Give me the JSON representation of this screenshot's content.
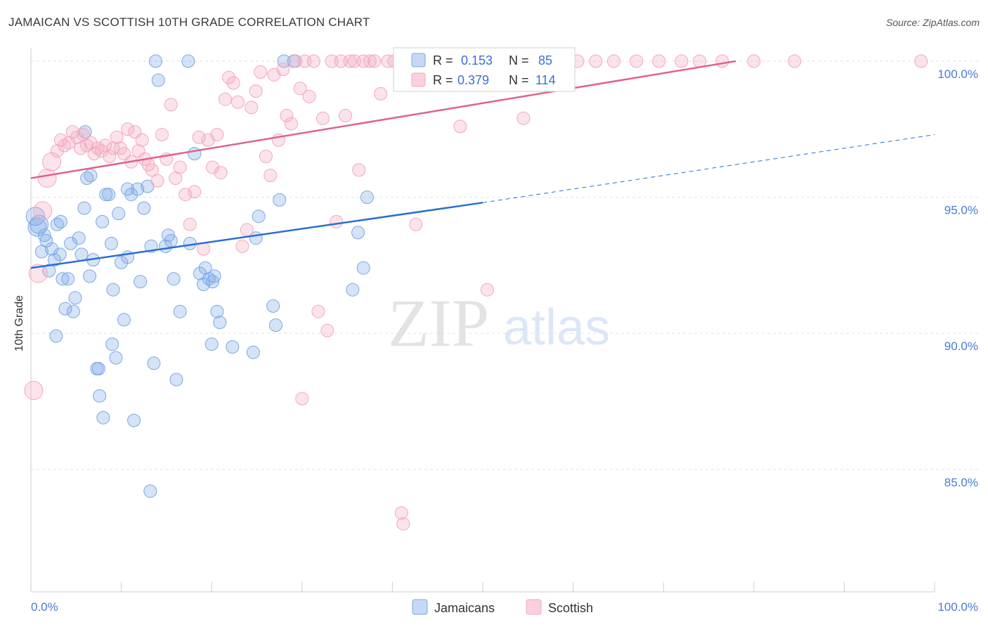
{
  "title": "JAMAICAN VS SCOTTISH 10TH GRADE CORRELATION CHART",
  "source": "Source: ZipAtlas.com",
  "watermark": {
    "zip": "ZIP",
    "atlas": "atlas"
  },
  "colors": {
    "blue": "#7ba7e6",
    "blue_line": "#2a6fd0",
    "pink": "#f4a7bf",
    "pink_line": "#e0628e",
    "tick": "#4a7bd0"
  },
  "chart_data": {
    "type": "scatter",
    "title": "JAMAICAN VS SCOTTISH 10TH GRADE CORRELATION CHART",
    "xlabel": "",
    "ylabel": "10th Grade",
    "xlim": [
      0,
      100
    ],
    "ylim": [
      80.5,
      100.8
    ],
    "x_tick_labels": [
      "0.0%",
      "100.0%"
    ],
    "y_ticks": [
      85,
      90,
      95,
      100
    ],
    "y_tick_labels": [
      "85.0%",
      "90.0%",
      "95.0%",
      "100.0%"
    ],
    "grid": "horizontal dashed",
    "legend_position": "top-center",
    "bottom_legend": [
      "Jamaicans",
      "Scottish"
    ],
    "stats": [
      {
        "r_label": "R =",
        "r": "0.153",
        "n_label": "N =",
        "n": "85"
      },
      {
        "r_label": "R =",
        "r": "0.379",
        "n_label": "N =",
        "n": "114"
      }
    ],
    "series": [
      {
        "name": "Jamaicans",
        "color": "#7ba7e6",
        "trend": {
          "x": [
            0,
            50
          ],
          "y": [
            92.4,
            94.8
          ],
          "dashed_to": [
            100,
            97.3
          ]
        },
        "points": [
          [
            0.5,
            94.3
          ],
          [
            0.7,
            93.9
          ],
          [
            0.9,
            94.0
          ],
          [
            1.2,
            93.0
          ],
          [
            1.5,
            93.6
          ],
          [
            1.7,
            93.4
          ],
          [
            2.0,
            92.3
          ],
          [
            2.3,
            93.1
          ],
          [
            2.6,
            92.7
          ],
          [
            2.9,
            94.0
          ],
          [
            3.2,
            92.9
          ],
          [
            3.5,
            92.0
          ],
          [
            3.8,
            90.9
          ],
          [
            4.1,
            92.0
          ],
          [
            4.4,
            93.3
          ],
          [
            4.7,
            90.8
          ],
          [
            4.9,
            91.3
          ],
          [
            5.3,
            93.5
          ],
          [
            5.6,
            92.9
          ],
          [
            5.9,
            94.6
          ],
          [
            6.2,
            95.7
          ],
          [
            6.5,
            92.1
          ],
          [
            6.9,
            92.7
          ],
          [
            7.3,
            88.7
          ],
          [
            7.6,
            87.7
          ],
          [
            7.9,
            94.1
          ],
          [
            8.3,
            95.1
          ],
          [
            8.6,
            95.1
          ],
          [
            8.9,
            93.3
          ],
          [
            9.1,
            91.6
          ],
          [
            9.4,
            89.1
          ],
          [
            9.7,
            94.4
          ],
          [
            10.0,
            92.6
          ],
          [
            10.3,
            90.5
          ],
          [
            10.7,
            92.8
          ],
          [
            11.1,
            95.1
          ],
          [
            11.4,
            86.8
          ],
          [
            11.8,
            95.3
          ],
          [
            12.1,
            91.9
          ],
          [
            12.5,
            94.6
          ],
          [
            12.9,
            95.4
          ],
          [
            13.3,
            93.2
          ],
          [
            13.6,
            88.9
          ],
          [
            13.8,
            100.0
          ],
          [
            13.2,
            84.2
          ],
          [
            14.1,
            99.3
          ],
          [
            14.9,
            93.2
          ],
          [
            15.2,
            93.6
          ],
          [
            15.5,
            93.4
          ],
          [
            15.8,
            92.0
          ],
          [
            16.1,
            88.3
          ],
          [
            16.5,
            90.8
          ],
          [
            17.4,
            100.0
          ],
          [
            17.6,
            93.3
          ],
          [
            18.1,
            96.6
          ],
          [
            18.7,
            92.2
          ],
          [
            19.1,
            91.8
          ],
          [
            19.3,
            92.4
          ],
          [
            19.7,
            92.0
          ],
          [
            20.1,
            91.9
          ],
          [
            20.3,
            92.1
          ],
          [
            20.6,
            90.8
          ],
          [
            20.9,
            90.4
          ],
          [
            20.0,
            89.6
          ],
          [
            22.3,
            89.5
          ],
          [
            24.6,
            89.3
          ],
          [
            24.9,
            93.5
          ],
          [
            25.2,
            94.3
          ],
          [
            27.1,
            90.3
          ],
          [
            26.8,
            91.0
          ],
          [
            27.5,
            94.9
          ],
          [
            28.0,
            100.0
          ],
          [
            29.1,
            100.0
          ],
          [
            35.6,
            91.6
          ],
          [
            36.2,
            93.7
          ],
          [
            36.8,
            92.4
          ],
          [
            37.2,
            95.0
          ],
          [
            8.0,
            86.9
          ],
          [
            7.5,
            88.7
          ],
          [
            9.0,
            89.6
          ],
          [
            2.8,
            89.9
          ],
          [
            6.0,
            97.4
          ],
          [
            10.7,
            95.3
          ],
          [
            6.6,
            95.8
          ],
          [
            3.3,
            94.1
          ]
        ]
      },
      {
        "name": "Scottish",
        "color": "#f4a7bf",
        "trend": {
          "x": [
            0,
            78
          ],
          "y": [
            95.7,
            100.0
          ]
        },
        "points": [
          [
            0.3,
            87.9
          ],
          [
            0.8,
            92.2
          ],
          [
            1.3,
            94.5
          ],
          [
            1.8,
            95.7
          ],
          [
            2.3,
            96.3
          ],
          [
            2.9,
            96.7
          ],
          [
            3.3,
            97.1
          ],
          [
            3.7,
            96.9
          ],
          [
            4.2,
            97.0
          ],
          [
            4.6,
            97.4
          ],
          [
            5.1,
            97.2
          ],
          [
            5.5,
            96.8
          ],
          [
            5.8,
            97.3
          ],
          [
            6.2,
            96.9
          ],
          [
            6.6,
            97.0
          ],
          [
            7.0,
            96.6
          ],
          [
            7.4,
            96.8
          ],
          [
            7.8,
            96.7
          ],
          [
            8.2,
            96.9
          ],
          [
            8.7,
            96.5
          ],
          [
            9.1,
            96.8
          ],
          [
            9.5,
            97.2
          ],
          [
            9.9,
            96.8
          ],
          [
            10.3,
            96.6
          ],
          [
            10.7,
            97.5
          ],
          [
            11.1,
            96.3
          ],
          [
            11.5,
            97.4
          ],
          [
            11.9,
            96.7
          ],
          [
            12.3,
            97.1
          ],
          [
            12.6,
            96.4
          ],
          [
            13.0,
            96.2
          ],
          [
            13.4,
            96.0
          ],
          [
            14.0,
            95.6
          ],
          [
            14.5,
            97.3
          ],
          [
            15.0,
            96.4
          ],
          [
            15.5,
            98.4
          ],
          [
            16.0,
            95.7
          ],
          [
            16.5,
            96.1
          ],
          [
            17.1,
            95.1
          ],
          [
            17.6,
            94.0
          ],
          [
            18.1,
            95.2
          ],
          [
            18.6,
            97.2
          ],
          [
            19.1,
            93.1
          ],
          [
            19.6,
            97.1
          ],
          [
            20.1,
            96.1
          ],
          [
            20.6,
            97.3
          ],
          [
            21.0,
            95.9
          ],
          [
            21.5,
            98.6
          ],
          [
            21.9,
            99.4
          ],
          [
            22.4,
            99.2
          ],
          [
            22.9,
            98.5
          ],
          [
            23.4,
            93.2
          ],
          [
            23.9,
            93.8
          ],
          [
            24.4,
            98.3
          ],
          [
            24.9,
            98.9
          ],
          [
            25.4,
            99.6
          ],
          [
            26.0,
            96.5
          ],
          [
            26.5,
            95.8
          ],
          [
            26.9,
            99.5
          ],
          [
            27.4,
            97.1
          ],
          [
            27.9,
            99.7
          ],
          [
            28.3,
            98.0
          ],
          [
            28.8,
            97.7
          ],
          [
            29.3,
            100.0
          ],
          [
            29.8,
            99.0
          ],
          [
            30.3,
            100.0
          ],
          [
            30.8,
            98.7
          ],
          [
            31.3,
            100.0
          ],
          [
            31.8,
            90.8
          ],
          [
            32.3,
            97.9
          ],
          [
            32.8,
            90.1
          ],
          [
            33.3,
            100.0
          ],
          [
            33.8,
            94.1
          ],
          [
            34.3,
            100.0
          ],
          [
            34.8,
            98.0
          ],
          [
            35.3,
            100.0
          ],
          [
            35.8,
            100.0
          ],
          [
            36.3,
            96.0
          ],
          [
            36.8,
            100.0
          ],
          [
            37.5,
            100.0
          ],
          [
            38.0,
            100.0
          ],
          [
            38.7,
            98.8
          ],
          [
            39.5,
            100.0
          ],
          [
            40.2,
            100.0
          ],
          [
            41.0,
            100.0
          ],
          [
            41.8,
            100.0
          ],
          [
            42.6,
            94.0
          ],
          [
            43.5,
            100.0
          ],
          [
            44.5,
            100.0
          ],
          [
            45.5,
            100.0
          ],
          [
            46.5,
            100.0
          ],
          [
            47.5,
            97.6
          ],
          [
            48.5,
            100.0
          ],
          [
            50.0,
            100.0
          ],
          [
            51.5,
            100.0
          ],
          [
            53.0,
            100.0
          ],
          [
            54.5,
            97.9
          ],
          [
            56.5,
            100.0
          ],
          [
            58.5,
            100.0
          ],
          [
            60.5,
            100.0
          ],
          [
            62.5,
            100.0
          ],
          [
            64.5,
            100.0
          ],
          [
            67.0,
            100.0
          ],
          [
            69.5,
            100.0
          ],
          [
            72.0,
            100.0
          ],
          [
            74.0,
            100.0
          ],
          [
            76.5,
            100.0
          ],
          [
            80.0,
            100.0
          ],
          [
            84.5,
            100.0
          ],
          [
            98.5,
            100.0
          ],
          [
            30.0,
            87.6
          ],
          [
            41.0,
            83.4
          ],
          [
            41.2,
            83.0
          ],
          [
            50.5,
            91.6
          ]
        ]
      }
    ]
  }
}
